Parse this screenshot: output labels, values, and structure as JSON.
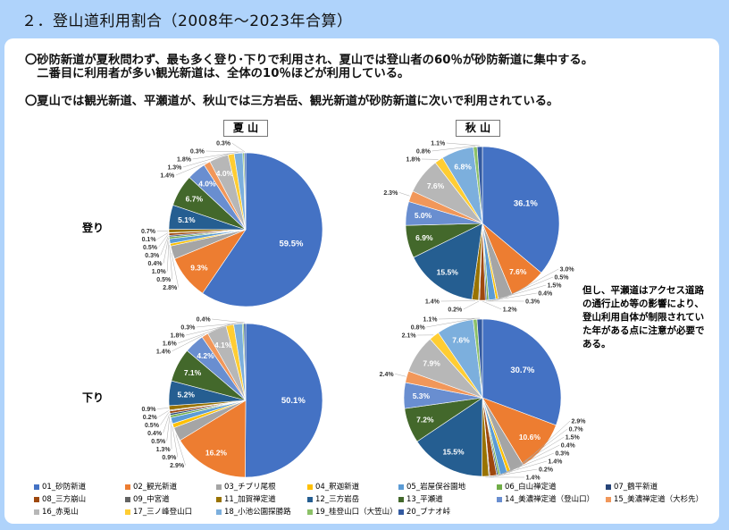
{
  "title": "２．登山道利用割合（2008年～2023年合算）",
  "notes": [
    "〇砂防新道が夏秋問わず、最も多く登り･下りで利用され、夏山では登山者の60％が砂防新道に集中する。",
    "　二番目に利用者が多い観光新道は、全体の10％ほどが利用している。",
    "〇夏山では観光新道、平瀬道が、秋山では三方岩岳、観光新道が砂防新道に次いで利用されている。"
  ],
  "side_note": "但し、平瀬道はアクセス道路の通行止め等の影響により、登山利用自体が制限されていた年がある点に注意が必要である。",
  "chart_data": {
    "type": "pie",
    "columns": [
      "夏 山",
      "秋 山"
    ],
    "rows": [
      "登り",
      "下り"
    ],
    "categories": [
      "01_砂防新道",
      "02_観光新道",
      "03_チブリ尾根",
      "04_釈迦新道",
      "05_岩屋俣谷園地",
      "06_白山禅定道",
      "07_鶴平新道",
      "08_三方崩山",
      "09_中宮道",
      "11_加賀禅定道",
      "12_三方岩岳",
      "13_平瀬道",
      "14_美濃禅定道（登山口）",
      "15_美濃禅定道（大杉先）",
      "16_赤兎山",
      "17_三ノ峰登山口",
      "18_小池公園探勝路",
      "19_桂登山口（大笠山）",
      "20_ブナオ峠"
    ],
    "colors": [
      "#4472C4",
      "#ED7D31",
      "#A5A5A5",
      "#FFC000",
      "#5B9BD5",
      "#70AD47",
      "#264478",
      "#9E480E",
      "#636363",
      "#997300",
      "#255E91",
      "#43682B",
      "#698ED0",
      "#F1975A",
      "#B7B7B7",
      "#FFCD33",
      "#7CAFDD",
      "#8CC168",
      "#335AA1"
    ],
    "series": [
      {
        "name": "夏山 登り",
        "values": [
          59.5,
          9.3,
          2.8,
          0.5,
          1.0,
          0.4,
          0.3,
          0.5,
          0.1,
          0.7,
          5.1,
          6.7,
          4.0,
          1.4,
          4.0,
          1.3,
          1.8,
          0.3,
          0.3
        ]
      },
      {
        "name": "秋山 登り",
        "values": [
          36.1,
          7.6,
          3.0,
          0.5,
          1.5,
          0.4,
          0.3,
          1.2,
          0.2,
          1.4,
          15.5,
          6.9,
          5.0,
          2.3,
          7.6,
          1.8,
          6.8,
          0.8,
          1.1
        ]
      },
      {
        "name": "夏山 下り",
        "values": [
          50.1,
          16.2,
          2.9,
          0.9,
          1.3,
          0.5,
          0.4,
          0.5,
          0.2,
          0.9,
          5.2,
          7.1,
          4.2,
          1.4,
          4.1,
          1.6,
          1.8,
          0.3,
          0.4
        ]
      },
      {
        "name": "秋山 下り",
        "values": [
          30.7,
          10.6,
          2.9,
          0.7,
          1.5,
          0.4,
          0.3,
          1.4,
          0.2,
          1.4,
          15.5,
          7.2,
          5.3,
          2.4,
          7.9,
          2.1,
          7.6,
          0.8,
          1.1
        ]
      }
    ],
    "unit": "%",
    "legend_position": "bottom"
  }
}
